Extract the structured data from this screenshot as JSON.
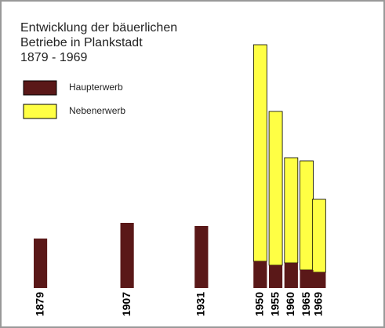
{
  "chart_data": {
    "type": "bar",
    "title": [
      "Entwicklung der bäuerlichen",
      "Betriebe in Plankstadt",
      "1879 - 1969"
    ],
    "x": [
      1879,
      1907,
      1931,
      1950,
      1955,
      1960,
      1965,
      1969
    ],
    "xlim": [
      1871,
      1985
    ],
    "ylim": [
      0,
      320
    ],
    "stacked": true,
    "series": [
      {
        "name": "Haupterwerb",
        "color": "#5a1818",
        "values": [
          63,
          83,
          79,
          34,
          29,
          32,
          23,
          20
        ]
      },
      {
        "name": "Nebenerwerb",
        "color": "#ffff44",
        "values": [
          null,
          null,
          null,
          276,
          196,
          134,
          139,
          93
        ]
      }
    ]
  }
}
